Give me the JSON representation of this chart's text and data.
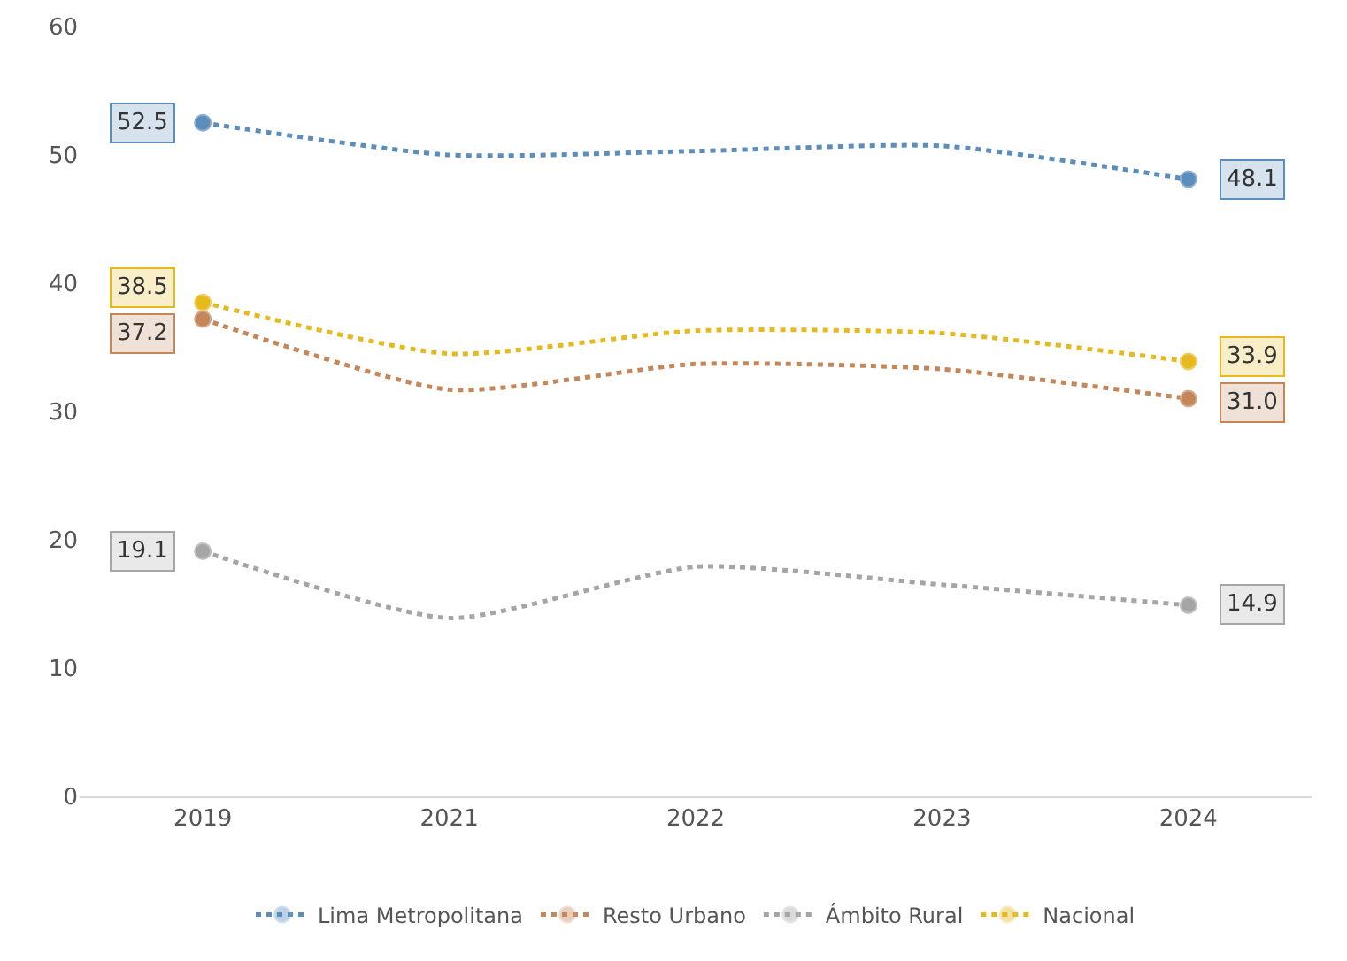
{
  "chart_data": {
    "type": "line",
    "categories": [
      "2019",
      "2021",
      "2022",
      "2023",
      "2024"
    ],
    "series": [
      {
        "name": "Lima Metropolitana",
        "color": "#5b8dbd",
        "values": [
          52.5,
          50.0,
          50.3,
          50.7,
          48.1
        ],
        "value_labels": [
          "52.5",
          null,
          null,
          null,
          "48.1"
        ]
      },
      {
        "name": "Resto Urbano",
        "color": "#c4875a",
        "values": [
          37.2,
          31.7,
          33.7,
          33.3,
          31.0
        ],
        "value_labels": [
          "37.2",
          null,
          null,
          null,
          "31.0"
        ]
      },
      {
        "name": "Ámbito Rural",
        "color": "#a5a5a5",
        "values": [
          19.1,
          13.9,
          17.9,
          16.5,
          14.9
        ],
        "value_labels": [
          "19.1",
          null,
          null,
          null,
          "14.9"
        ]
      },
      {
        "name": "Nacional",
        "color": "#e6b91e",
        "values": [
          38.5,
          34.5,
          36.3,
          36.1,
          33.9
        ],
        "value_labels": [
          "38.5",
          null,
          null,
          null,
          "33.9"
        ]
      }
    ],
    "ylim": [
      0,
      60
    ],
    "yticks": [
      0,
      10,
      20,
      30,
      40,
      50,
      60
    ],
    "grid": false,
    "legend": "bottom",
    "line_style": "dotted"
  }
}
